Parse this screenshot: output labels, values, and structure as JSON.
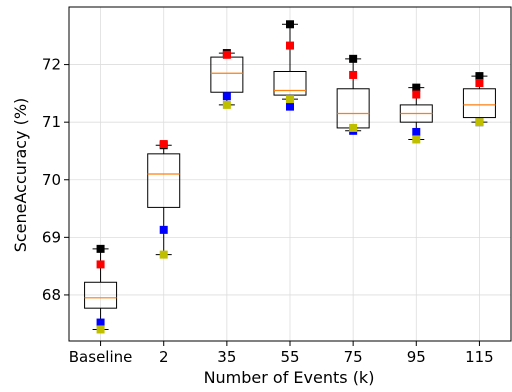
{
  "chart_data": {
    "type": "box",
    "title": "",
    "xlabel": "Number of Events (k)",
    "ylabel": "SceneAccuracy (%)",
    "categories": [
      "Baseline",
      "2",
      "35",
      "55",
      "75",
      "95",
      "115"
    ],
    "ylim": [
      67.2,
      73.0
    ],
    "yticks": [
      68,
      69,
      70,
      71,
      72
    ],
    "grid": true,
    "boxes": [
      {
        "q1": 67.77,
        "median": 67.95,
        "q3": 68.22,
        "whisker_low": 67.4,
        "whisker_high": 68.8
      },
      {
        "q1": 69.52,
        "median": 70.1,
        "q3": 70.45,
        "whisker_low": 68.7,
        "whisker_high": 70.6
      },
      {
        "q1": 71.52,
        "median": 71.85,
        "q3": 72.13,
        "whisker_low": 71.3,
        "whisker_high": 72.2
      },
      {
        "q1": 71.47,
        "median": 71.55,
        "q3": 71.88,
        "whisker_low": 71.4,
        "whisker_high": 72.7
      },
      {
        "q1": 70.9,
        "median": 71.15,
        "q3": 71.58,
        "whisker_low": 70.85,
        "whisker_high": 72.1
      },
      {
        "q1": 71.0,
        "median": 71.15,
        "q3": 71.3,
        "whisker_low": 70.7,
        "whisker_high": 71.6
      },
      {
        "q1": 71.08,
        "median": 71.3,
        "q3": 71.58,
        "whisker_low": 71.0,
        "whisker_high": 71.8
      }
    ],
    "series": [
      {
        "color": "#000000",
        "values": [
          68.8,
          70.6,
          72.2,
          72.7,
          72.1,
          71.6,
          71.8
        ]
      },
      {
        "color": "#ff0000",
        "values": [
          68.53,
          70.62,
          72.17,
          72.33,
          71.82,
          71.48,
          71.68
        ]
      },
      {
        "color": "#0000ff",
        "values": [
          67.52,
          69.13,
          71.45,
          71.27,
          70.85,
          70.83,
          71.0
        ]
      },
      {
        "color": "#bfbf00",
        "values": [
          67.4,
          68.7,
          71.3,
          71.4,
          70.9,
          70.7,
          71.0
        ]
      }
    ],
    "colors": {
      "box": "#000000",
      "median": "#ff7f0e",
      "grid": "#dddddd"
    }
  }
}
